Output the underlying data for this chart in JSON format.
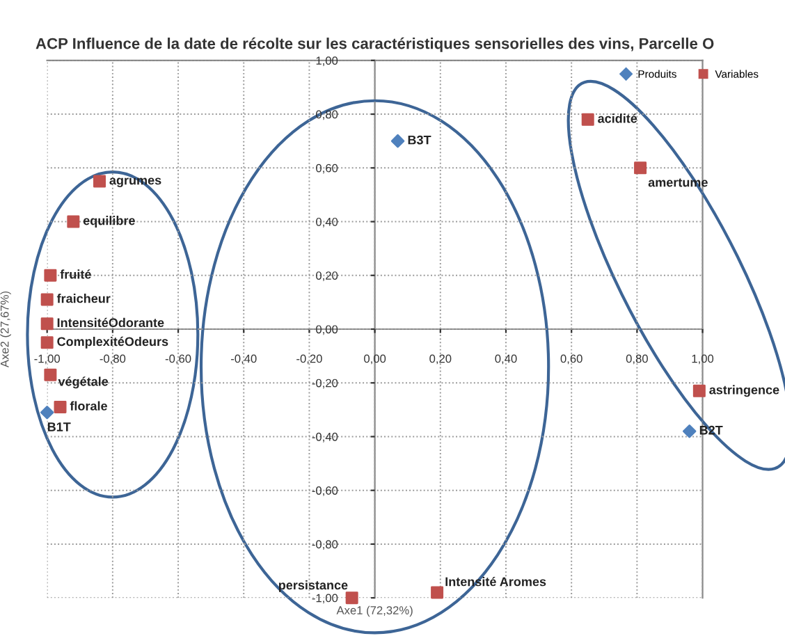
{
  "chart_data": {
    "type": "scatter",
    "title": "ACP Influence de la date de récolte sur les caractéristiques sensorielles des vins, Parcelle O",
    "xlabel": "Axe1 (72,32%)",
    "ylabel": "Axe2 (27,67%)",
    "xlim": [
      -1,
      1
    ],
    "ylim": [
      -1,
      1
    ],
    "xticks": [
      {
        "value": -1,
        "label": "-1,00"
      },
      {
        "value": -0.8,
        "label": "-0,80"
      },
      {
        "value": -0.6,
        "label": "-0,60"
      },
      {
        "value": -0.4,
        "label": "-0,40"
      },
      {
        "value": -0.2,
        "label": "-0,20"
      },
      {
        "value": 0,
        "label": "0,00"
      },
      {
        "value": 0.2,
        "label": "0,20"
      },
      {
        "value": 0.4,
        "label": "0,40"
      },
      {
        "value": 0.6,
        "label": "0,60"
      },
      {
        "value": 0.8,
        "label": "0,80"
      },
      {
        "value": 1,
        "label": "1,00"
      }
    ],
    "yticks": [
      {
        "value": -1,
        "label": "-1,00"
      },
      {
        "value": -0.8,
        "label": "-0,80"
      },
      {
        "value": -0.6,
        "label": "-0,60"
      },
      {
        "value": -0.4,
        "label": "-0,40"
      },
      {
        "value": -0.2,
        "label": "-0,20"
      },
      {
        "value": 0,
        "label": "0,00"
      },
      {
        "value": 0.2,
        "label": "0,20"
      },
      {
        "value": 0.4,
        "label": "0,40"
      },
      {
        "value": 0.6,
        "label": "0,60"
      },
      {
        "value": 0.8,
        "label": "0,80"
      },
      {
        "value": 1,
        "label": "1,00"
      }
    ],
    "grid": true,
    "legend": "top right",
    "series": [
      {
        "name": "Produits",
        "color": "#4f81bd",
        "marker": "diamond",
        "x": [
          0.07,
          0.96,
          -1.0
        ],
        "values": [
          0.7,
          -0.38,
          -0.31
        ]
      },
      {
        "name": "Variables",
        "color": "#c0504d",
        "marker": "square",
        "x": [
          -0.84,
          -0.92,
          -0.99,
          -1.0,
          -1.0,
          -1.0,
          -0.99,
          -0.96,
          0.65,
          0.81,
          0.99,
          -0.07,
          0.19
        ],
        "values": [
          0.55,
          0.4,
          0.2,
          0.11,
          0.02,
          -0.05,
          -0.17,
          -0.29,
          0.78,
          0.6,
          -0.23,
          -1.0,
          -0.98
        ]
      }
    ],
    "annotations": [
      {
        "text": "B3T",
        "x": 0.07,
        "y": 0.7
      },
      {
        "text": "B2T",
        "x": 0.96,
        "y": -0.38
      },
      {
        "text": "B1T",
        "x": -1.0,
        "y": -0.31
      },
      {
        "text": "agrumes",
        "x": -0.84,
        "y": 0.55
      },
      {
        "text": "equilibre",
        "x": -0.92,
        "y": 0.4
      },
      {
        "text": "fruité",
        "x": -0.99,
        "y": 0.2
      },
      {
        "text": "fraicheur",
        "x": -1.0,
        "y": 0.11
      },
      {
        "text": "IntensitéOdorante",
        "x": -1.0,
        "y": 0.02
      },
      {
        "text": "ComplexitéOdeurs",
        "x": -1.0,
        "y": -0.05
      },
      {
        "text": "végétale",
        "x": -0.99,
        "y": -0.17
      },
      {
        "text": "florale",
        "x": -0.96,
        "y": -0.29
      },
      {
        "text": "acidité",
        "x": 0.65,
        "y": 0.78
      },
      {
        "text": "amertume",
        "x": 0.81,
        "y": 0.6
      },
      {
        "text": "astringence",
        "x": 0.99,
        "y": -0.23
      },
      {
        "text": "persistance",
        "x": -0.07,
        "y": -1.0
      },
      {
        "text": "Intensité Aromes",
        "x": 0.19,
        "y": -0.98
      }
    ]
  }
}
